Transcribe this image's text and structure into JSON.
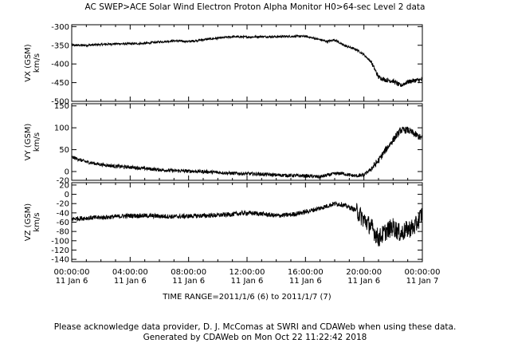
{
  "title": "AC  SWEP>ACE Solar Wind Electron Proton Alpha Monitor  H0>64-sec Level 2 data",
  "time_range": "TIME RANGE=2011/1/6 (6) to 2011/1/7 (7)",
  "footer": {
    "line1": "Please acknowledge data provider, D. J. McComas at SWRI and CDAWeb when using these data.",
    "line2": "Generated by CDAWeb on Mon Oct 22 11:22:42 2018"
  },
  "colors": {
    "trace": "#000000",
    "axis": "#000000",
    "background": "#ffffff"
  },
  "chart_data": [
    {
      "type": "line",
      "title": "",
      "ylabel": "VX (GSM)",
      "yunits": "km/s",
      "ylim": [
        -500,
        -295
      ],
      "yticks": [
        -300,
        -350,
        -400,
        -450,
        -500
      ],
      "xlim": [
        0,
        24
      ],
      "xticks": [
        {
          "hours": 0,
          "time": "00:00:00",
          "date": "11 Jan  6"
        },
        {
          "hours": 4,
          "time": "04:00:00",
          "date": "11 Jan  6"
        },
        {
          "hours": 8,
          "time": "08:00:00",
          "date": "11 Jan  6"
        },
        {
          "hours": 12,
          "time": "12:00:00",
          "date": "11 Jan  6"
        },
        {
          "hours": 16,
          "time": "16:00:00",
          "date": "11 Jan  6"
        },
        {
          "hours": 20,
          "time": "20:00:00",
          "date": "11 Jan  6"
        },
        {
          "hours": 24,
          "time": "00:00:00",
          "date": "11 Jan  7"
        }
      ],
      "series": [
        {
          "x": [
            0,
            1,
            2,
            3,
            4,
            5,
            6,
            7,
            8,
            9,
            10,
            11,
            12,
            13,
            14,
            15,
            16,
            17,
            17.5,
            18,
            18.5,
            19,
            19.5,
            20,
            20.5,
            21,
            21.5,
            22,
            22.5,
            23,
            23.5,
            24
          ],
          "values": [
            -350,
            -350,
            -348,
            -346,
            -346,
            -345,
            -341,
            -338,
            -340,
            -335,
            -331,
            -327,
            -328,
            -327,
            -327,
            -326,
            -326,
            -335,
            -340,
            -335,
            -348,
            -355,
            -362,
            -375,
            -395,
            -435,
            -443,
            -446,
            -458,
            -448,
            -444,
            -442
          ],
          "noise": 3
        }
      ]
    },
    {
      "type": "line",
      "title": "",
      "ylabel": "VY (GSM)",
      "yunits": "km/s",
      "ylim": [
        -20,
        155
      ],
      "yticks": [
        150,
        100,
        50,
        0,
        -20
      ],
      "xlim": [
        0,
        24
      ],
      "series": [
        {
          "x": [
            0,
            1,
            2,
            3,
            4,
            5,
            6,
            7,
            8,
            9,
            10,
            11,
            12,
            13,
            14,
            15,
            16,
            17,
            18,
            18.5,
            19,
            19.5,
            20,
            20.5,
            21,
            21.5,
            22,
            22.5,
            23,
            23.5,
            24
          ],
          "values": [
            33,
            22,
            16,
            12,
            10,
            7,
            4,
            2,
            1,
            0,
            -2,
            -4,
            -5,
            -6,
            -8,
            -9,
            -10,
            -12,
            -5,
            -4,
            -8,
            -10,
            -8,
            6,
            25,
            50,
            72,
            94,
            95,
            85,
            75
          ],
          "noise": 4
        }
      ]
    },
    {
      "type": "line",
      "title": "",
      "ylabel": "VZ (GSM)",
      "yunits": "km/s",
      "ylim": [
        -145,
        25
      ],
      "yticks": [
        20,
        0,
        -20,
        -40,
        -60,
        -80,
        -100,
        -120,
        -140
      ],
      "xlim": [
        0,
        24
      ],
      "series": [
        {
          "x": [
            0,
            1,
            2,
            3,
            4,
            5,
            6,
            7,
            8,
            9,
            10,
            11,
            12,
            13,
            14,
            15,
            16,
            17,
            18,
            18.5,
            19,
            19.5,
            20,
            20.5,
            21,
            21.5,
            22,
            22.5,
            23,
            23.5,
            24
          ],
          "values": [
            -53,
            -51,
            -50,
            -48,
            -46,
            -46,
            -47,
            -48,
            -47,
            -46,
            -45,
            -43,
            -40,
            -42,
            -46,
            -44,
            -38,
            -30,
            -20,
            -22,
            -28,
            -35,
            -55,
            -70,
            -95,
            -80,
            -70,
            -85,
            -75,
            -70,
            -40
          ],
          "noise": 5
        }
      ]
    }
  ]
}
